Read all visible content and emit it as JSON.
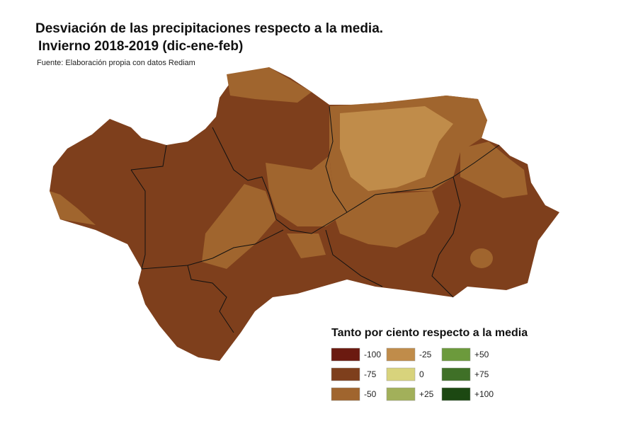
{
  "header": {
    "title": "Desviación de las precipitaciones respecto a la media.",
    "subtitle": "Invierno 2018-2019 (dic-ene-feb)",
    "source": "Fuente: Elaboración propia con datos Rediam"
  },
  "legend": {
    "title": "Tanto por ciento respecto a la media",
    "items": [
      {
        "label": "-100",
        "color": "#6b1a10"
      },
      {
        "label": "-75",
        "color": "#7e3f1c"
      },
      {
        "label": "-50",
        "color": "#a0652e"
      },
      {
        "label": "-25",
        "color": "#c08c4a"
      },
      {
        "label": "0",
        "color": "#d8d37c"
      },
      {
        "label": "+25",
        "color": "#a2b05a"
      },
      {
        "label": "+50",
        "color": "#6c9a3c"
      },
      {
        "label": "+75",
        "color": "#3f7027"
      },
      {
        "label": "+100",
        "color": "#1c4812"
      }
    ]
  }
}
